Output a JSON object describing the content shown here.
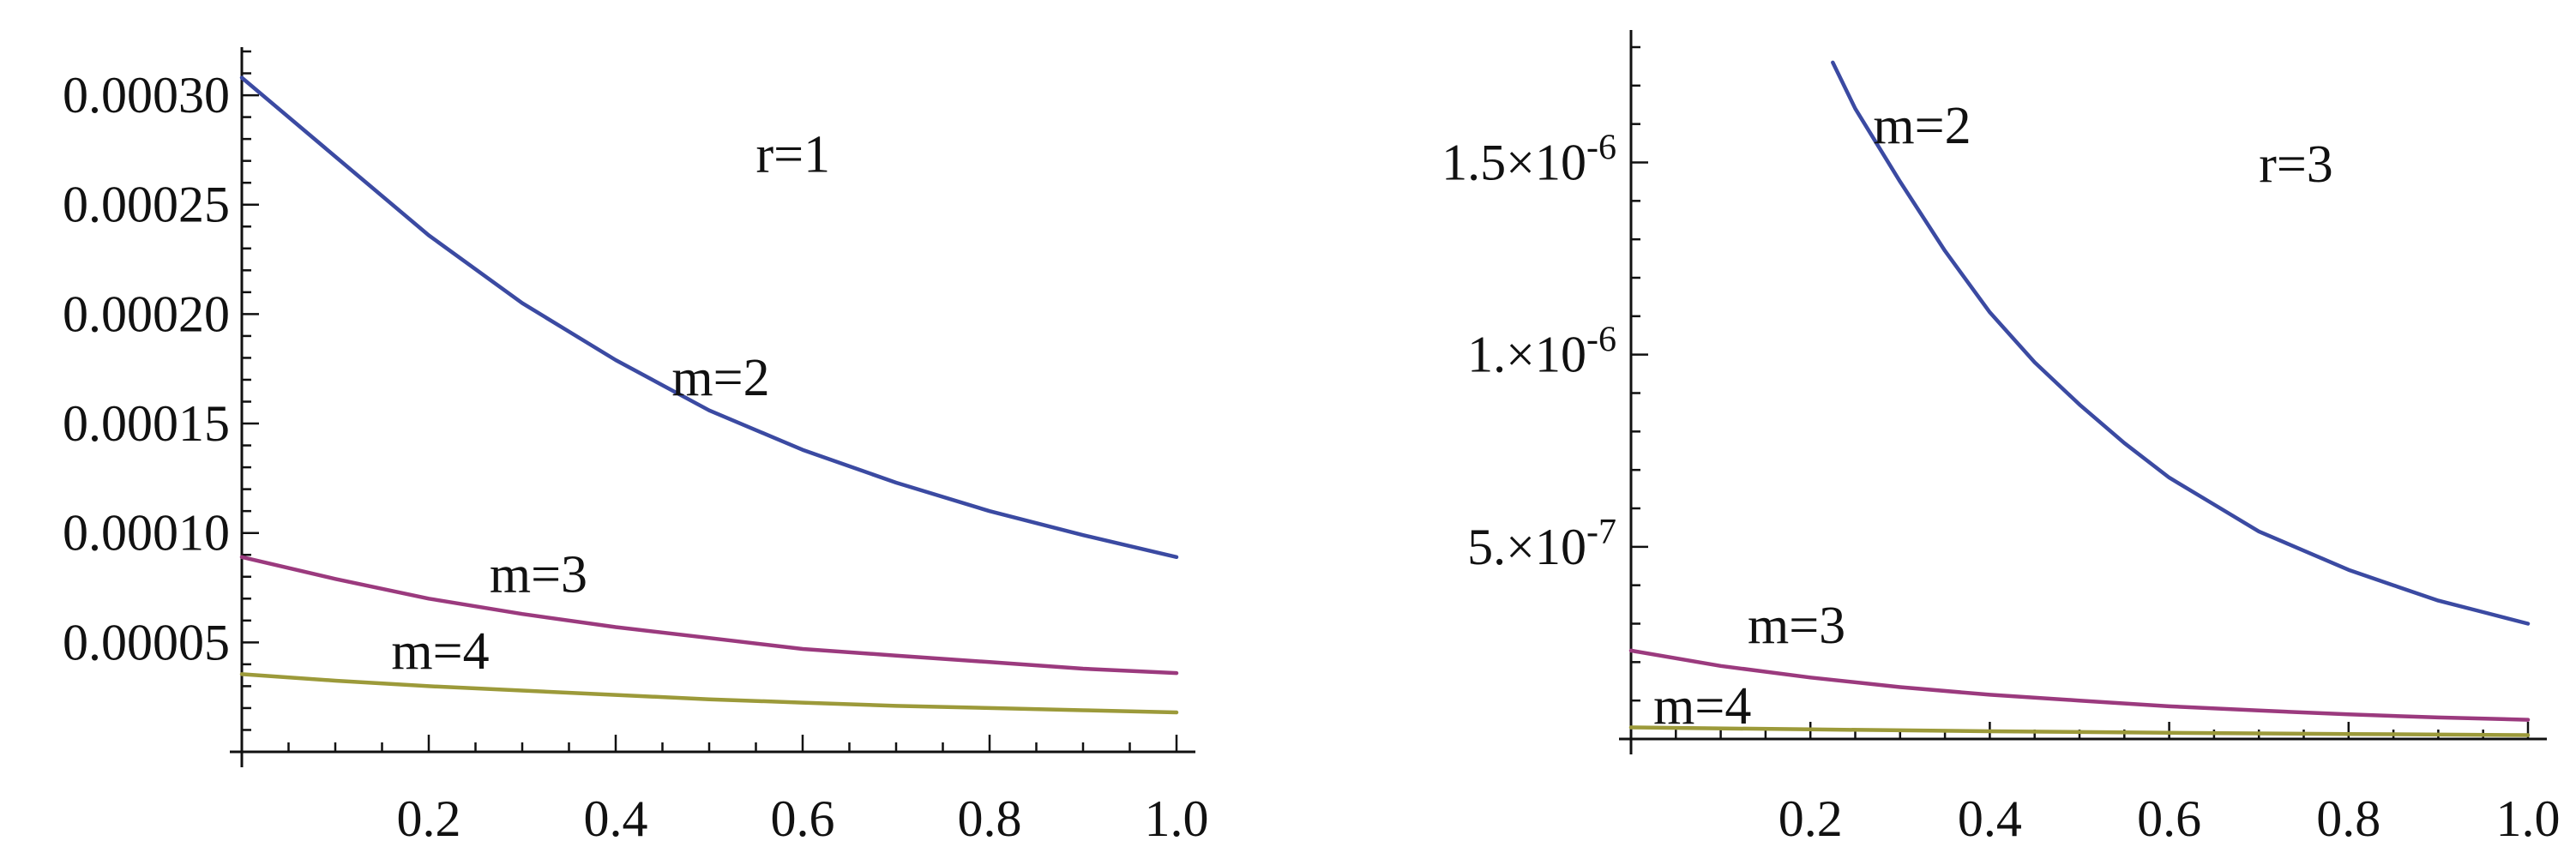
{
  "chart_data": [
    {
      "type": "line",
      "title": "",
      "xlabel": "",
      "ylabel": "",
      "xlim": [
        0,
        1.0
      ],
      "ylim": [
        0,
        0.00032
      ],
      "grid": false,
      "x_ticks": [
        {
          "value": 0.2,
          "label": "0.2"
        },
        {
          "value": 0.4,
          "label": "0.4"
        },
        {
          "value": 0.6,
          "label": "0.6"
        },
        {
          "value": 0.8,
          "label": "0.8"
        },
        {
          "value": 1.0,
          "label": "1.0"
        }
      ],
      "y_ticks": [
        {
          "value": 5e-05,
          "label": "0.00005"
        },
        {
          "value": 0.0001,
          "label": "0.00010"
        },
        {
          "value": 0.00015,
          "label": "0.00015"
        },
        {
          "value": 0.0002,
          "label": "0.00020"
        },
        {
          "value": 0.00025,
          "label": "0.00025"
        },
        {
          "value": 0.0003,
          "label": "0.00030"
        }
      ],
      "annotations": [
        {
          "text": "r=1",
          "x": 0.55,
          "y": 0.000265
        },
        {
          "text": "m=2",
          "x": 0.46,
          "y": 0.000163
        },
        {
          "text": "m=3",
          "x": 0.265,
          "y": 7.3e-05
        },
        {
          "text": "m=4",
          "x": 0.16,
          "y": 3.8e-05
        }
      ],
      "series": [
        {
          "color": "#3b4aa2",
          "x": [
            0,
            0.1,
            0.2,
            0.3,
            0.4,
            0.5,
            0.6,
            0.7,
            0.8,
            0.9,
            1.0
          ],
          "y": [
            0.000308,
            0.000272,
            0.000236,
            0.000205,
            0.000179,
            0.000156,
            0.000138,
            0.000123,
            0.00011,
            9.9e-05,
            8.9e-05
          ]
        },
        {
          "color": "#9b3a7e",
          "x": [
            0,
            0.1,
            0.2,
            0.3,
            0.4,
            0.5,
            0.6,
            0.7,
            0.8,
            0.9,
            1.0
          ],
          "y": [
            8.9e-05,
            7.9e-05,
            7e-05,
            6.3e-05,
            5.7e-05,
            5.2e-05,
            4.7e-05,
            4.4e-05,
            4.1e-05,
            3.8e-05,
            3.6e-05
          ]
        },
        {
          "color": "#9c9a3a",
          "x": [
            0,
            0.1,
            0.2,
            0.3,
            0.4,
            0.5,
            0.6,
            0.7,
            0.8,
            0.9,
            1.0
          ],
          "y": [
            3.55e-05,
            3.25e-05,
            3e-05,
            2.8e-05,
            2.6e-05,
            2.4e-05,
            2.25e-05,
            2.1e-05,
            2e-05,
            1.9e-05,
            1.8e-05
          ]
        }
      ]
    },
    {
      "type": "line",
      "title": "",
      "xlabel": "",
      "ylabel": "",
      "xlim": [
        0,
        1.0
      ],
      "ylim": [
        0,
        1.8e-06
      ],
      "grid": false,
      "x_ticks": [
        {
          "value": 0.2,
          "label": "0.2"
        },
        {
          "value": 0.4,
          "label": "0.4"
        },
        {
          "value": 0.6,
          "label": "0.6"
        },
        {
          "value": 0.8,
          "label": "0.8"
        },
        {
          "value": 1.0,
          "label": "1.0"
        }
      ],
      "y_ticks": [
        {
          "value": 5e-07,
          "mantissa": "5.",
          "exponent": "-7"
        },
        {
          "value": 1e-06,
          "mantissa": "1.",
          "exponent": "-6"
        },
        {
          "value": 1.5e-06,
          "mantissa": "1.5",
          "exponent": "-6"
        }
      ],
      "annotations": [
        {
          "text": "r=3",
          "x": 0.7,
          "y": 1.45e-06
        },
        {
          "text": "m=2",
          "x": 0.27,
          "y": 1.55e-06
        },
        {
          "text": "m=3",
          "x": 0.13,
          "y": 2.5e-07
        },
        {
          "text": "m=4",
          "x": 0.025,
          "y": 4e-08
        }
      ],
      "series": [
        {
          "color": "#3b4aa2",
          "x": [
            0.225,
            0.25,
            0.3,
            0.35,
            0.4,
            0.45,
            0.5,
            0.55,
            0.6,
            0.65,
            0.7,
            0.75,
            0.8,
            0.85,
            0.9,
            0.95,
            1.0
          ],
          "y": [
            1.76e-06,
            1.64e-06,
            1.45e-06,
            1.27e-06,
            1.11e-06,
            9.8e-07,
            8.7e-07,
            7.7e-07,
            6.8e-07,
            6.1e-07,
            5.4e-07,
            4.9e-07,
            4.4e-07,
            4e-07,
            3.6e-07,
            3.3e-07,
            3e-07
          ]
        },
        {
          "color": "#9b3a7e",
          "x": [
            0,
            0.1,
            0.2,
            0.3,
            0.4,
            0.5,
            0.6,
            0.7,
            0.8,
            0.9,
            1.0
          ],
          "y": [
            2.3e-07,
            1.9e-07,
            1.6e-07,
            1.35e-07,
            1.15e-07,
            1e-07,
            8.5e-08,
            7.4e-08,
            6.4e-08,
            5.6e-08,
            5e-08
          ]
        },
        {
          "color": "#9c9a3a",
          "x": [
            0,
            0.2,
            0.4,
            0.6,
            0.8,
            1.0
          ],
          "y": [
            3e-08,
            2.5e-08,
            2e-08,
            1.6e-08,
            1.3e-08,
            1e-08
          ]
        }
      ]
    }
  ]
}
